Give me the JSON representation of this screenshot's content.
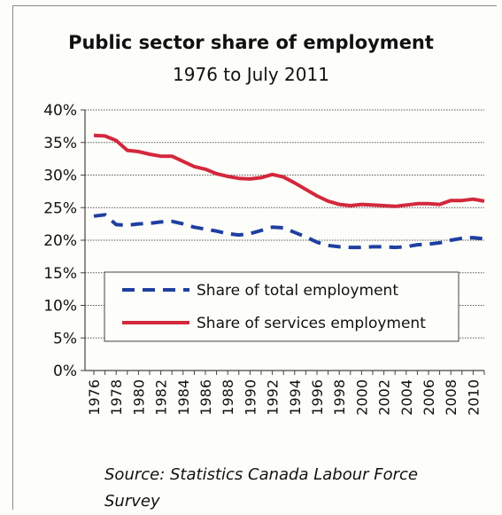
{
  "chart_data": {
    "type": "line",
    "title": "Public sector share of employment",
    "subtitle": "1976 to July 2011",
    "source": "Source: Statistics Canada Labour Force Survey",
    "x": [
      1976,
      1977,
      1978,
      1979,
      1980,
      1981,
      1982,
      1983,
      1984,
      1985,
      1986,
      1987,
      1988,
      1989,
      1990,
      1991,
      1992,
      1993,
      1994,
      1995,
      1996,
      1997,
      1998,
      1999,
      2000,
      2001,
      2002,
      2003,
      2004,
      2005,
      2006,
      2007,
      2008,
      2009,
      2010,
      2011
    ],
    "x_tick_labels": [
      "1976",
      "1978",
      "1980",
      "1982",
      "1984",
      "1986",
      "1988",
      "1990",
      "1992",
      "1994",
      "1996",
      "1998",
      "2000",
      "2002",
      "2004",
      "2006",
      "2008",
      "2010"
    ],
    "y_tick_labels": [
      "0%",
      "5%",
      "10%",
      "15%",
      "20%",
      "25%",
      "30%",
      "35%",
      "40%"
    ],
    "ylim": [
      0,
      40
    ],
    "ystep": 5,
    "grid": true,
    "legend_position": "lower-left",
    "series": [
      {
        "name": "Share of total employment",
        "style": "dashed",
        "color": "#1f3fa0",
        "values": [
          23.7,
          23.9,
          22.4,
          22.3,
          22.5,
          22.6,
          22.8,
          22.9,
          22.5,
          22.0,
          21.7,
          21.4,
          21.0,
          20.8,
          21.0,
          21.5,
          22.0,
          21.9,
          21.2,
          20.5,
          19.7,
          19.2,
          19.0,
          18.9,
          18.9,
          19.0,
          19.0,
          18.9,
          19.0,
          19.3,
          19.4,
          19.6,
          20.0,
          20.3,
          20.4,
          20.2
        ]
      },
      {
        "name": "Share of services employment",
        "style": "solid",
        "color": "#d3283c",
        "values": [
          36.1,
          36.0,
          35.3,
          33.8,
          33.6,
          33.2,
          32.9,
          32.9,
          32.1,
          31.3,
          30.9,
          30.2,
          29.8,
          29.5,
          29.4,
          29.6,
          30.1,
          29.7,
          28.8,
          27.8,
          26.8,
          26.0,
          25.5,
          25.3,
          25.5,
          25.4,
          25.3,
          25.2,
          25.4,
          25.6,
          25.6,
          25.5,
          26.1,
          26.1,
          26.3,
          26.0
        ]
      }
    ]
  }
}
